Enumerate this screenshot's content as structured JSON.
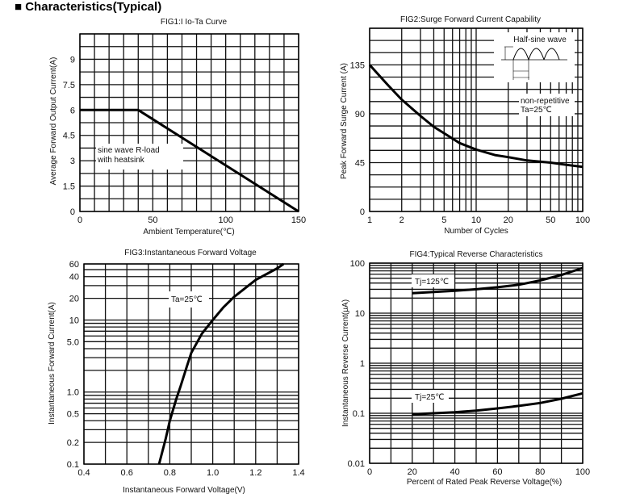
{
  "page_title": "■ Characteristics(Typical)",
  "chart_data": [
    {
      "type": "line",
      "title": "FIG1:I Io-Ta Curve",
      "xlabel": "Ambient Temperature(℃)",
      "ylabel": "Average Forward Output Current(A)",
      "xscale": "linear",
      "yscale": "linear",
      "xlim": [
        0,
        150
      ],
      "ylim": [
        0,
        10.5
      ],
      "grid": true,
      "xticks": [
        {
          "v": 0,
          "label": "0"
        },
        {
          "v": 50,
          "label": "50"
        },
        {
          "v": 100,
          "label": "100"
        },
        {
          "v": 150,
          "label": "150"
        }
      ],
      "yticks": [
        {
          "v": 0,
          "label": "0"
        },
        {
          "v": 1.5,
          "label": "1.5"
        },
        {
          "v": 3,
          "label": "3"
        },
        {
          "v": 4.5,
          "label": "4.5"
        },
        {
          "v": 6,
          "label": "6"
        },
        {
          "v": 7.5,
          "label": "7.5"
        },
        {
          "v": 9,
          "label": "9"
        }
      ],
      "series": [
        {
          "x": [
            0,
            40,
            150
          ],
          "y": [
            6,
            6,
            0
          ]
        }
      ],
      "annotations": [
        "sine wave R-load",
        "with heatsink"
      ]
    },
    {
      "type": "line",
      "title": "FIG2:Surge Forward Current Capability",
      "xlabel": "Number of Cycles",
      "ylabel": "Peak Forward Surge Current (A)",
      "xscale": "log",
      "yscale": "linear",
      "xlim": [
        1,
        100
      ],
      "ylim": [
        0,
        168.75
      ],
      "grid": true,
      "xticks": [
        {
          "v": 1,
          "label": "1"
        },
        {
          "v": 2,
          "label": "2"
        },
        {
          "v": 5,
          "label": "5"
        },
        {
          "v": 10,
          "label": "10"
        },
        {
          "v": 20,
          "label": "20"
        },
        {
          "v": 50,
          "label": "50"
        },
        {
          "v": 100,
          "label": "100"
        }
      ],
      "yticks": [
        {
          "v": 0,
          "label": "0"
        },
        {
          "v": 45,
          "label": "45"
        },
        {
          "v": 90,
          "label": "90"
        },
        {
          "v": 135,
          "label": "135"
        }
      ],
      "series": [
        {
          "x": [
            1,
            1.5,
            2,
            3,
            4,
            5,
            7,
            10,
            15,
            20,
            30,
            50,
            70,
            100
          ],
          "y": [
            135,
            116,
            103,
            88,
            78,
            72,
            63,
            57,
            52,
            50,
            47,
            45,
            43,
            41
          ]
        }
      ],
      "annotations": [
        "Half-sine wave",
        "non-repetitive",
        "Ta=25℃"
      ]
    },
    {
      "type": "line",
      "title": "FIG3:Instantaneous Forward Voltage",
      "xlabel": "Instantaneous Forward Voltage(V)",
      "ylabel": "Instantaneous Forward Current(A)",
      "xscale": "linear",
      "yscale": "log",
      "xlim": [
        0.4,
        1.4
      ],
      "ylim": [
        0.1,
        60
      ],
      "grid": true,
      "xticks": [
        {
          "v": 0.4,
          "label": "0.4"
        },
        {
          "v": 0.6,
          "label": "0.6"
        },
        {
          "v": 0.8,
          "label": "0.8"
        },
        {
          "v": 1.0,
          "label": "1.0"
        },
        {
          "v": 1.2,
          "label": "1.2"
        },
        {
          "v": 1.4,
          "label": "1.4"
        }
      ],
      "yticks": [
        {
          "v": 0.1,
          "label": "0.1"
        },
        {
          "v": 0.2,
          "label": "0.2"
        },
        {
          "v": 0.5,
          "label": "0.5"
        },
        {
          "v": 1,
          "label": "1.0"
        },
        {
          "v": 5,
          "label": "5.0"
        },
        {
          "v": 10,
          "label": "10"
        },
        {
          "v": 20,
          "label": "20"
        },
        {
          "v": 40,
          "label": "40"
        },
        {
          "v": 60,
          "label": "60"
        }
      ],
      "series": [
        {
          "x": [
            0.75,
            0.78,
            0.8,
            0.83,
            0.85,
            0.88,
            0.9,
            0.95,
            1.0,
            1.05,
            1.1,
            1.2,
            1.3,
            1.33
          ],
          "y": [
            0.1,
            0.22,
            0.4,
            0.8,
            1.2,
            2.3,
            3.5,
            6.5,
            10,
            15,
            21,
            36,
            52,
            60
          ]
        }
      ],
      "annotations": [
        "Ta=25℃"
      ]
    },
    {
      "type": "line",
      "title": "FIG4:Typical Reverse Characteristics",
      "xlabel": "Percent of Rated Peak Reverse Voltage(%)",
      "ylabel": "Instantaneous Reverse Current(μA)",
      "xscale": "linear",
      "yscale": "log",
      "xlim": [
        0,
        100
      ],
      "ylim": [
        0.01,
        100
      ],
      "grid": true,
      "xticks": [
        {
          "v": 0,
          "label": "0"
        },
        {
          "v": 20,
          "label": "20"
        },
        {
          "v": 40,
          "label": "40"
        },
        {
          "v": 60,
          "label": "60"
        },
        {
          "v": 80,
          "label": "80"
        },
        {
          "v": 100,
          "label": "100"
        }
      ],
      "yticks": [
        {
          "v": 0.01,
          "label": "0.01"
        },
        {
          "v": 0.1,
          "label": "0.1"
        },
        {
          "v": 1,
          "label": "1"
        },
        {
          "v": 10,
          "label": "10"
        },
        {
          "v": 100,
          "label": "100"
        }
      ],
      "series": [
        {
          "name": "Tj=125℃",
          "x": [
            20,
            30,
            40,
            50,
            60,
            70,
            80,
            90,
            100
          ],
          "y": [
            25,
            26.5,
            28,
            30,
            33,
            37,
            45,
            58,
            80
          ]
        },
        {
          "name": "Tj=25℃",
          "x": [
            20,
            30,
            40,
            50,
            60,
            70,
            80,
            90,
            100
          ],
          "y": [
            0.095,
            0.1,
            0.105,
            0.113,
            0.125,
            0.14,
            0.16,
            0.195,
            0.25
          ]
        }
      ],
      "annotations": [
        "Tj=125℃",
        "Tj=25℃"
      ]
    }
  ]
}
